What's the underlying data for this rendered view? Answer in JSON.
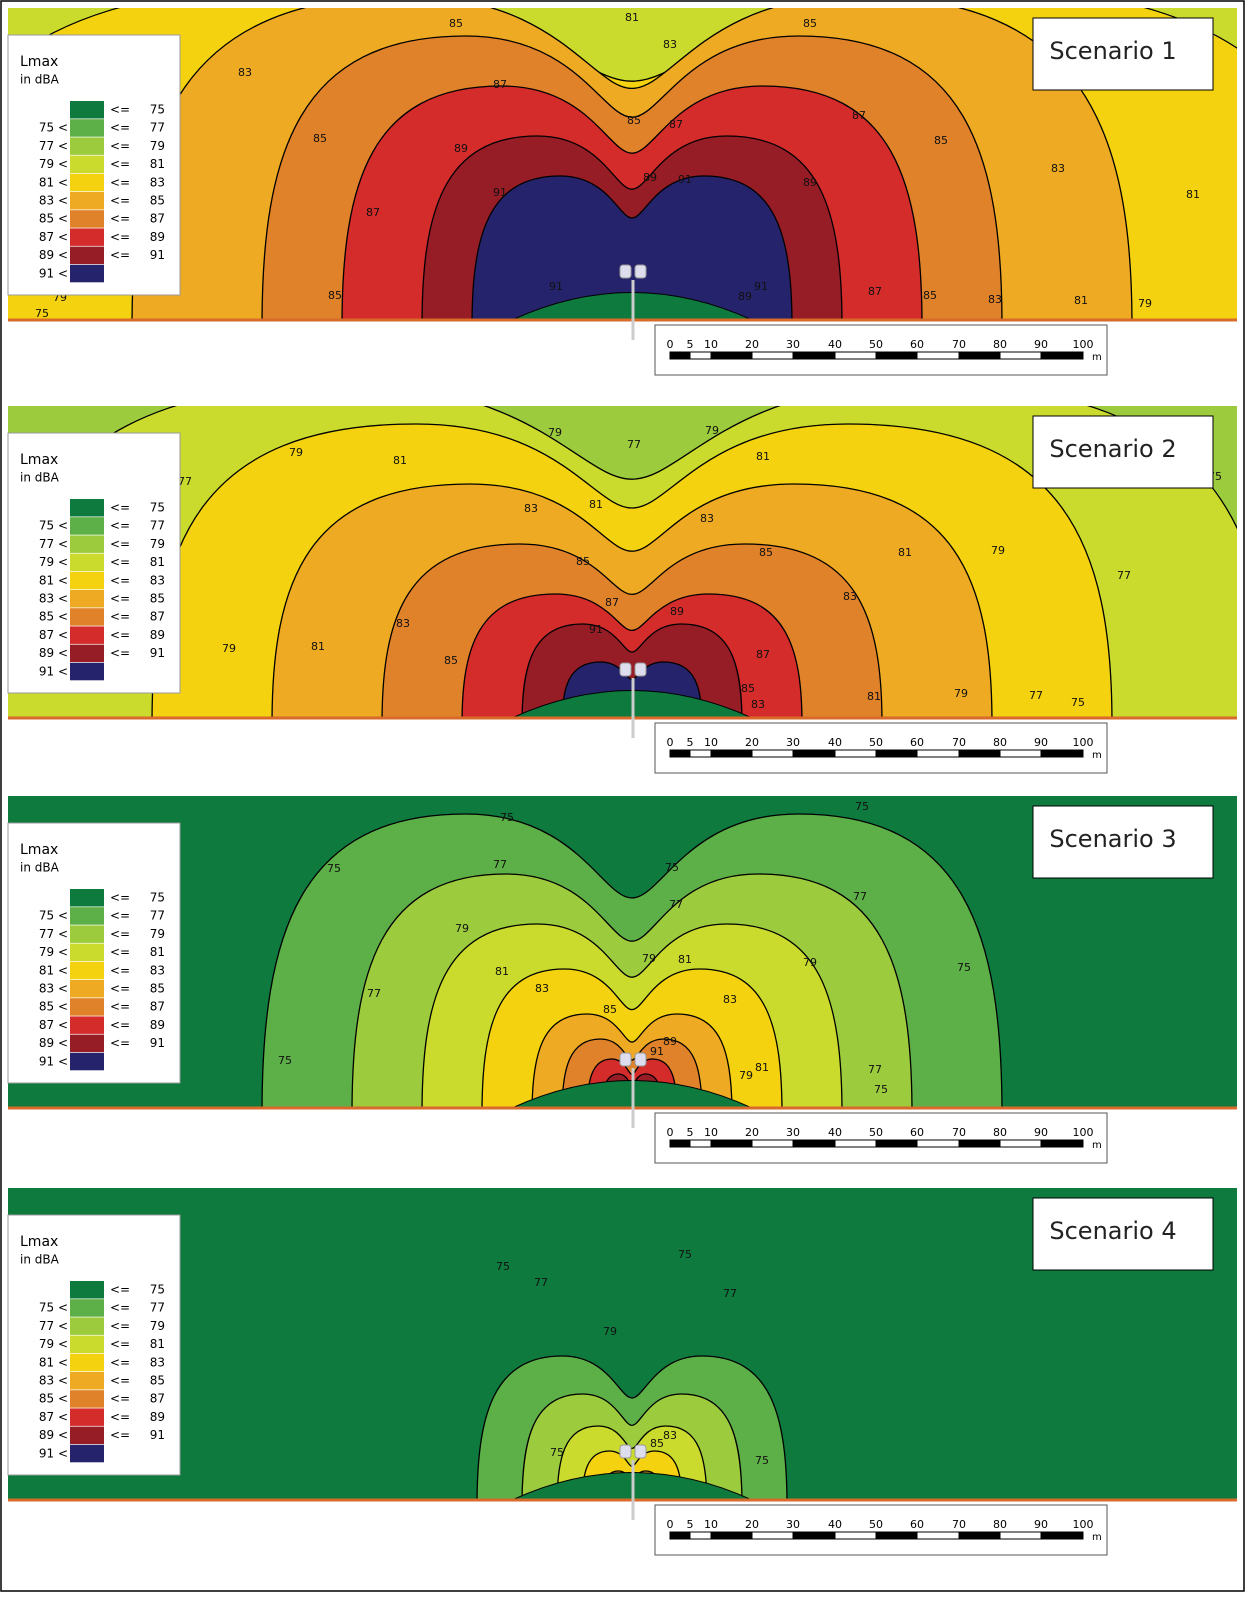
{
  "legend": {
    "title": "Lmax",
    "unit": "in dBA",
    "rows": [
      {
        "op": "<=",
        "to": "75"
      },
      {
        "from": "75 <",
        "op": "<=",
        "to": "77"
      },
      {
        "from": "77 <",
        "op": "<=",
        "to": "79"
      },
      {
        "from": "79 <",
        "op": "<=",
        "to": "81"
      },
      {
        "from": "81 <",
        "op": "<=",
        "to": "83"
      },
      {
        "from": "83 <",
        "op": "<=",
        "to": "85"
      },
      {
        "from": "85 <",
        "op": "<=",
        "to": "87"
      },
      {
        "from": "87 <",
        "op": "<=",
        "to": "89"
      },
      {
        "from": "89 <",
        "op": "<=",
        "to": "91"
      },
      {
        "from": "91 <"
      }
    ],
    "colors": [
      "#0e7a3e",
      "#5daf47",
      "#9ccb3e",
      "#cadb2e",
      "#f4d210",
      "#eeaa23",
      "#e0822a",
      "#d42b2b",
      "#961c26",
      "#25236b"
    ]
  },
  "scale_bar": {
    "labels": [
      "0",
      "5",
      "10",
      "20",
      "30",
      "40",
      "50",
      "60",
      "70",
      "80",
      "90",
      "100"
    ],
    "unit": "m"
  },
  "panels": [
    {
      "title": "Scenario 1",
      "contour_labels": [
        "85",
        "81",
        "85",
        "83",
        "83",
        "87",
        "85",
        "87",
        "87",
        "85",
        "85",
        "89",
        "89",
        "91",
        "89",
        "91",
        "83",
        "81",
        "87",
        "85",
        "91",
        "89",
        "91",
        "87",
        "85",
        "83",
        "81",
        "79",
        "79",
        "75"
      ]
    },
    {
      "title": "Scenario 2",
      "contour_labels": [
        "79",
        "77",
        "79",
        "81",
        "81",
        "79",
        "77",
        "75",
        "83",
        "81",
        "83",
        "85",
        "85",
        "81",
        "79",
        "77",
        "87",
        "89",
        "83",
        "83",
        "91",
        "79",
        "81",
        "85",
        "87",
        "85",
        "83",
        "81",
        "79",
        "77",
        "75"
      ]
    },
    {
      "title": "Scenario 3",
      "contour_labels": [
        "75",
        "75",
        "75",
        "77",
        "75",
        "77",
        "77",
        "79",
        "79",
        "81",
        "79",
        "75",
        "81",
        "83",
        "83",
        "77",
        "85",
        "89",
        "91",
        "81",
        "77",
        "79",
        "75",
        "75"
      ]
    },
    {
      "title": "Scenario 4",
      "contour_labels": [
        "75",
        "75",
        "77",
        "77",
        "79",
        "83",
        "85",
        "75",
        "75"
      ]
    }
  ]
}
